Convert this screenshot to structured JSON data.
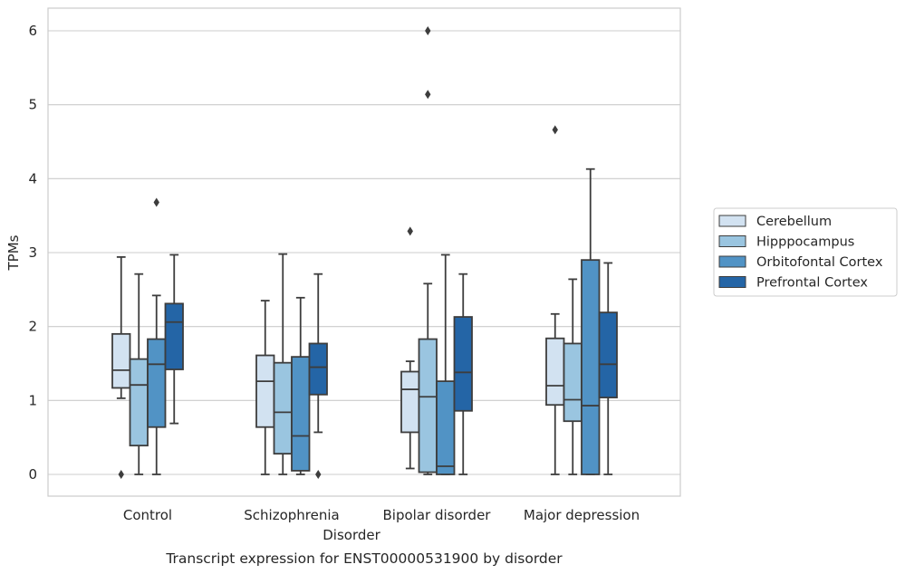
{
  "chart_data": {
    "type": "boxplot",
    "title": "Transcript expression for ENST00000531900 by disorder",
    "xlabel": "Disorder",
    "ylabel": "TPMs",
    "ylim": [
      -0.3,
      6.3
    ],
    "yticks": [
      0,
      1,
      2,
      3,
      4,
      5,
      6
    ],
    "grid": true,
    "legend_position": "right",
    "categories": [
      "Control",
      "Schizophrenia",
      "Bipolar disorder",
      "Major depression"
    ],
    "series": [
      {
        "name": "Cerebellum",
        "color": "#d2e2f1",
        "boxes": [
          {
            "min": 1.03,
            "q1": 1.17,
            "median": 1.41,
            "q3": 1.9,
            "max": 2.94,
            "outliers": [
              0.0
            ]
          },
          {
            "min": 0.0,
            "q1": 0.64,
            "median": 1.26,
            "q3": 1.61,
            "max": 2.35,
            "outliers": []
          },
          {
            "min": 0.08,
            "q1": 0.57,
            "median": 1.15,
            "q3": 1.39,
            "max": 1.53,
            "outliers": [
              3.29
            ]
          },
          {
            "min": 0.0,
            "q1": 0.94,
            "median": 1.2,
            "q3": 1.84,
            "max": 2.17,
            "outliers": [
              4.66
            ]
          }
        ]
      },
      {
        "name": "Hipppocampus",
        "color": "#9ac5e0",
        "boxes": [
          {
            "min": 0.0,
            "q1": 0.39,
            "median": 1.21,
            "q3": 1.56,
            "max": 2.71,
            "outliers": []
          },
          {
            "min": 0.0,
            "q1": 0.28,
            "median": 0.84,
            "q3": 1.51,
            "max": 2.98,
            "outliers": []
          },
          {
            "min": 0.0,
            "q1": 0.03,
            "median": 1.05,
            "q3": 1.83,
            "max": 2.58,
            "outliers": [
              5.14,
              6.0
            ]
          },
          {
            "min": 0.0,
            "q1": 0.72,
            "median": 1.01,
            "q3": 1.77,
            "max": 2.64,
            "outliers": []
          }
        ]
      },
      {
        "name": "Orbitofontal Cortex",
        "color": "#5193c5",
        "boxes": [
          {
            "min": 0.0,
            "q1": 0.64,
            "median": 1.49,
            "q3": 1.83,
            "max": 2.42,
            "outliers": [
              3.68
            ]
          },
          {
            "min": 0.0,
            "q1": 0.05,
            "median": 0.52,
            "q3": 1.59,
            "max": 2.39,
            "outliers": []
          },
          {
            "min": 0.0,
            "q1": 0.0,
            "median": 0.11,
            "q3": 1.26,
            "max": 2.97,
            "outliers": []
          },
          {
            "min": 0.0,
            "q1": 0.0,
            "median": 0.93,
            "q3": 2.9,
            "max": 4.13,
            "outliers": []
          }
        ]
      },
      {
        "name": "Prefrontal Cortex",
        "color": "#2465a6",
        "boxes": [
          {
            "min": 0.69,
            "q1": 1.42,
            "median": 2.06,
            "q3": 2.31,
            "max": 2.97,
            "outliers": []
          },
          {
            "min": 0.57,
            "q1": 1.08,
            "median": 1.45,
            "q3": 1.77,
            "max": 2.71,
            "outliers": [
              0.0
            ]
          },
          {
            "min": 0.0,
            "q1": 0.86,
            "median": 1.38,
            "q3": 2.13,
            "max": 2.71,
            "outliers": []
          },
          {
            "min": 0.0,
            "q1": 1.04,
            "median": 1.49,
            "q3": 2.19,
            "max": 2.86,
            "outliers": []
          }
        ]
      }
    ]
  }
}
